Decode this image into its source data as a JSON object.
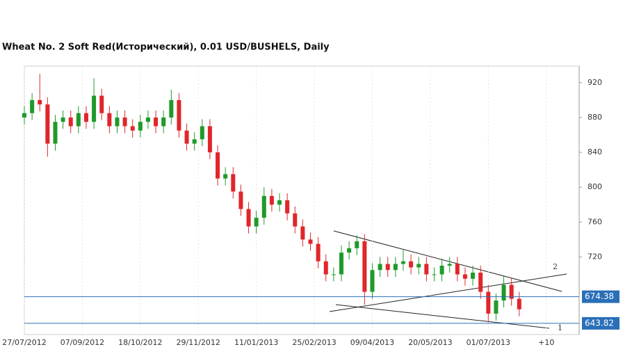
{
  "chart_data": {
    "type": "candlestick",
    "title": "Wheat  No. 2 Soft Red(Исторический), 0.01 USD/BUSHELS, Daily",
    "x": [
      0,
      4,
      8,
      12,
      16,
      20,
      24,
      28,
      32,
      36,
      40,
      44,
      48,
      52,
      56,
      60,
      64,
      68,
      72,
      76,
      80,
      84,
      88,
      92,
      96,
      100,
      104,
      108,
      112,
      116,
      120,
      124,
      128,
      132,
      136,
      140,
      144,
      148,
      152,
      156,
      160,
      164,
      168,
      172,
      176,
      180,
      184,
      188,
      192,
      196,
      200,
      204,
      208,
      212,
      216,
      220,
      224,
      228,
      232,
      236,
      240,
      244,
      248,
      252,
      256
    ],
    "open": [
      880,
      885,
      900,
      895,
      850,
      875,
      880,
      870,
      885,
      875,
      905,
      885,
      870,
      880,
      870,
      865,
      875,
      880,
      870,
      880,
      900,
      865,
      850,
      855,
      870,
      840,
      810,
      815,
      795,
      775,
      755,
      765,
      790,
      780,
      785,
      770,
      755,
      740,
      735,
      715,
      700,
      700,
      725,
      730,
      738,
      680,
      705,
      712,
      705,
      712,
      715,
      708,
      712,
      700,
      700,
      710,
      712,
      700,
      695,
      702,
      680,
      655,
      670,
      688,
      672
    ],
    "high": [
      893,
      908,
      930,
      903,
      883,
      888,
      888,
      893,
      893,
      925,
      913,
      893,
      888,
      888,
      878,
      883,
      888,
      888,
      888,
      912,
      908,
      873,
      863,
      878,
      878,
      848,
      823,
      823,
      803,
      783,
      773,
      800,
      798,
      793,
      793,
      778,
      763,
      748,
      743,
      723,
      708,
      733,
      738,
      745,
      746,
      713,
      720,
      720,
      720,
      728,
      723,
      720,
      720,
      708,
      718,
      720,
      720,
      708,
      710,
      710,
      688,
      678,
      698,
      696,
      680
    ],
    "low": [
      872,
      877,
      887,
      835,
      842,
      867,
      862,
      862,
      867,
      867,
      877,
      862,
      862,
      862,
      857,
      857,
      867,
      862,
      862,
      872,
      857,
      842,
      842,
      847,
      832,
      802,
      802,
      787,
      767,
      747,
      747,
      757,
      772,
      772,
      762,
      747,
      732,
      727,
      707,
      692,
      692,
      692,
      717,
      722,
      665,
      672,
      697,
      697,
      697,
      704,
      700,
      700,
      692,
      692,
      692,
      702,
      692,
      687,
      687,
      672,
      645,
      647,
      662,
      664,
      652
    ],
    "close": [
      885,
      900,
      895,
      850,
      875,
      880,
      870,
      885,
      875,
      905,
      885,
      870,
      880,
      870,
      865,
      875,
      880,
      870,
      880,
      900,
      865,
      850,
      855,
      870,
      840,
      810,
      815,
      795,
      775,
      755,
      765,
      790,
      780,
      785,
      770,
      755,
      740,
      735,
      715,
      700,
      700,
      725,
      730,
      738,
      680,
      705,
      712,
      705,
      712,
      715,
      708,
      712,
      700,
      700,
      710,
      712,
      700,
      695,
      702,
      680,
      655,
      670,
      688,
      672,
      660
    ],
    "up_color": "#1f9a2a",
    "down_color": "#e0262a",
    "xlim": [
      0,
      287
    ],
    "xticks": [
      {
        "value": 0,
        "label": "27/07/2012"
      },
      {
        "value": 30,
        "label": "07/09/2012"
      },
      {
        "value": 60,
        "label": "18/10/2012"
      },
      {
        "value": 90,
        "label": "29/11/2012"
      },
      {
        "value": 120,
        "label": "11/01/2013"
      },
      {
        "value": 150,
        "label": "25/02/2013"
      },
      {
        "value": 180,
        "label": "09/04/2013"
      },
      {
        "value": 210,
        "label": "20/05/2013"
      },
      {
        "value": 240,
        "label": "01/07/2013"
      },
      {
        "value": 270,
        "label": "+10"
      }
    ],
    "ylim": [
      631,
      939
    ],
    "yticks": [
      720,
      760,
      800,
      840,
      880,
      920
    ],
    "hlines": [
      {
        "value": 674.38,
        "label": "674.38"
      },
      {
        "value": 643.82,
        "label": "643.82"
      }
    ],
    "hline_color": "#2a6fb8",
    "annotations": [
      "1",
      "2"
    ]
  }
}
